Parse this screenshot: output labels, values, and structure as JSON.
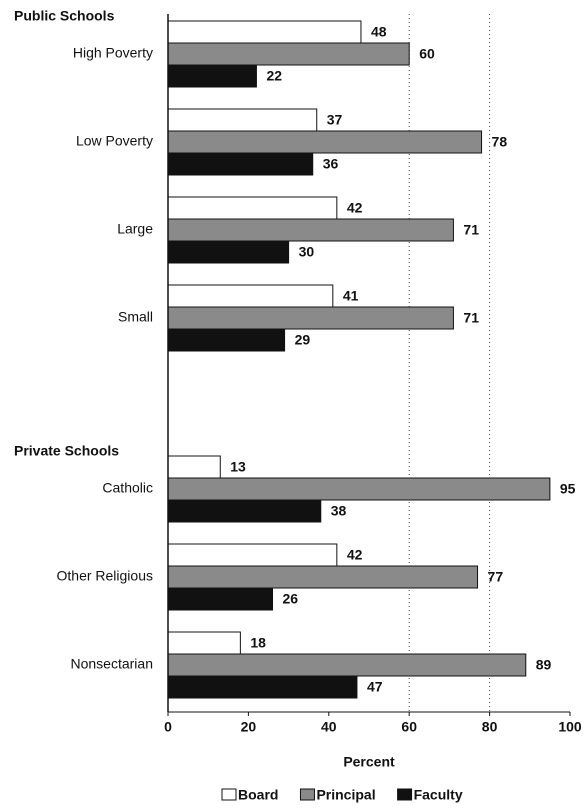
{
  "chart_data": {
    "type": "bar",
    "orientation": "horizontal",
    "groups": [
      {
        "name": "Public Schools",
        "categories": [
          "High Poverty",
          "Low Poverty",
          "Large",
          "Small"
        ]
      },
      {
        "name": "Private Schools",
        "categories": [
          "Catholic",
          "Other Religious",
          "Nonsectarian"
        ]
      }
    ],
    "series": [
      {
        "name": "Board",
        "color": "#ffffff",
        "values": [
          48,
          37,
          42,
          41,
          13,
          42,
          18
        ]
      },
      {
        "name": "Principal",
        "color": "#8a8a8a",
        "values": [
          60,
          78,
          71,
          71,
          95,
          77,
          89
        ]
      },
      {
        "name": "Faculty",
        "color": "#111111",
        "values": [
          22,
          36,
          30,
          29,
          38,
          26,
          47
        ]
      }
    ],
    "x_label": "Percent",
    "xlim": [
      0,
      100
    ],
    "xticks": [
      0,
      20,
      40,
      60,
      80,
      100
    ],
    "gridlines": [
      60,
      80
    ],
    "legend": "bottom"
  }
}
